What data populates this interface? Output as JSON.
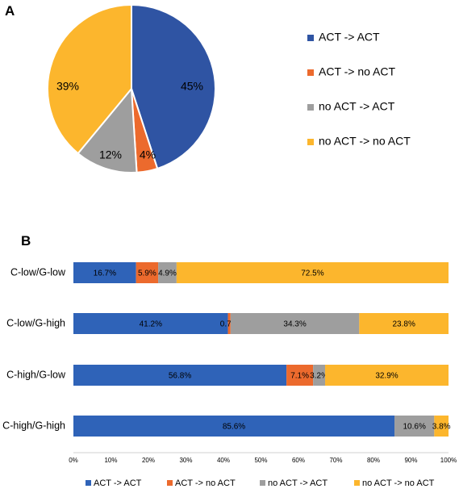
{
  "panels": {
    "a": "A",
    "b": "B"
  },
  "chart_data": [
    {
      "type": "pie",
      "panel": "A",
      "slices": [
        {
          "label": "ACT -> ACT",
          "value": 45,
          "display": "45%",
          "color": "#2F54A3"
        },
        {
          "label": "ACT -> no ACT",
          "value": 4,
          "display": "4%",
          "color": "#EC6A2D"
        },
        {
          "label": "no ACT -> ACT",
          "value": 12,
          "display": "12%",
          "color": "#9E9E9E"
        },
        {
          "label": "no ACT -> no ACT",
          "value": 39,
          "display": "39%",
          "color": "#FCB62D"
        }
      ],
      "legend_position": "right"
    },
    {
      "type": "bar",
      "orientation": "horizontal",
      "stacked": "percent",
      "panel": "B",
      "categories": [
        "C-low/G-low",
        "C-low/G-high",
        "C-high/G-low",
        "C-high/G-high"
      ],
      "series": [
        {
          "name": "ACT -> ACT",
          "color": "#2F63B8",
          "values": [
            16.7,
            41.2,
            56.8,
            85.6
          ],
          "labels": [
            "16.7%",
            "41.2%",
            "56.8%",
            "85.6%"
          ]
        },
        {
          "name": "ACT -> no ACT",
          "color": "#EC6A2D",
          "values": [
            5.9,
            0.7,
            7.1,
            0.0
          ],
          "labels": [
            "5.9%",
            "0.7%",
            "7.1%",
            ""
          ]
        },
        {
          "name": "no ACT -> ACT",
          "color": "#9E9E9E",
          "values": [
            4.9,
            34.3,
            3.2,
            10.6
          ],
          "labels": [
            "4.9%",
            "34.3%",
            "3.2%",
            "10.6%"
          ]
        },
        {
          "name": "no ACT -> no ACT",
          "color": "#FCB62D",
          "values": [
            72.5,
            23.8,
            32.9,
            3.8
          ],
          "labels": [
            "72.5%",
            "23.8%",
            "32.9%",
            "3.8%"
          ]
        }
      ],
      "xlim": [
        0,
        100
      ],
      "xticks": [
        "0%",
        "10%",
        "20%",
        "30%",
        "40%",
        "50%",
        "60%",
        "70%",
        "80%",
        "90%",
        "100%"
      ],
      "legend_position": "bottom"
    }
  ]
}
